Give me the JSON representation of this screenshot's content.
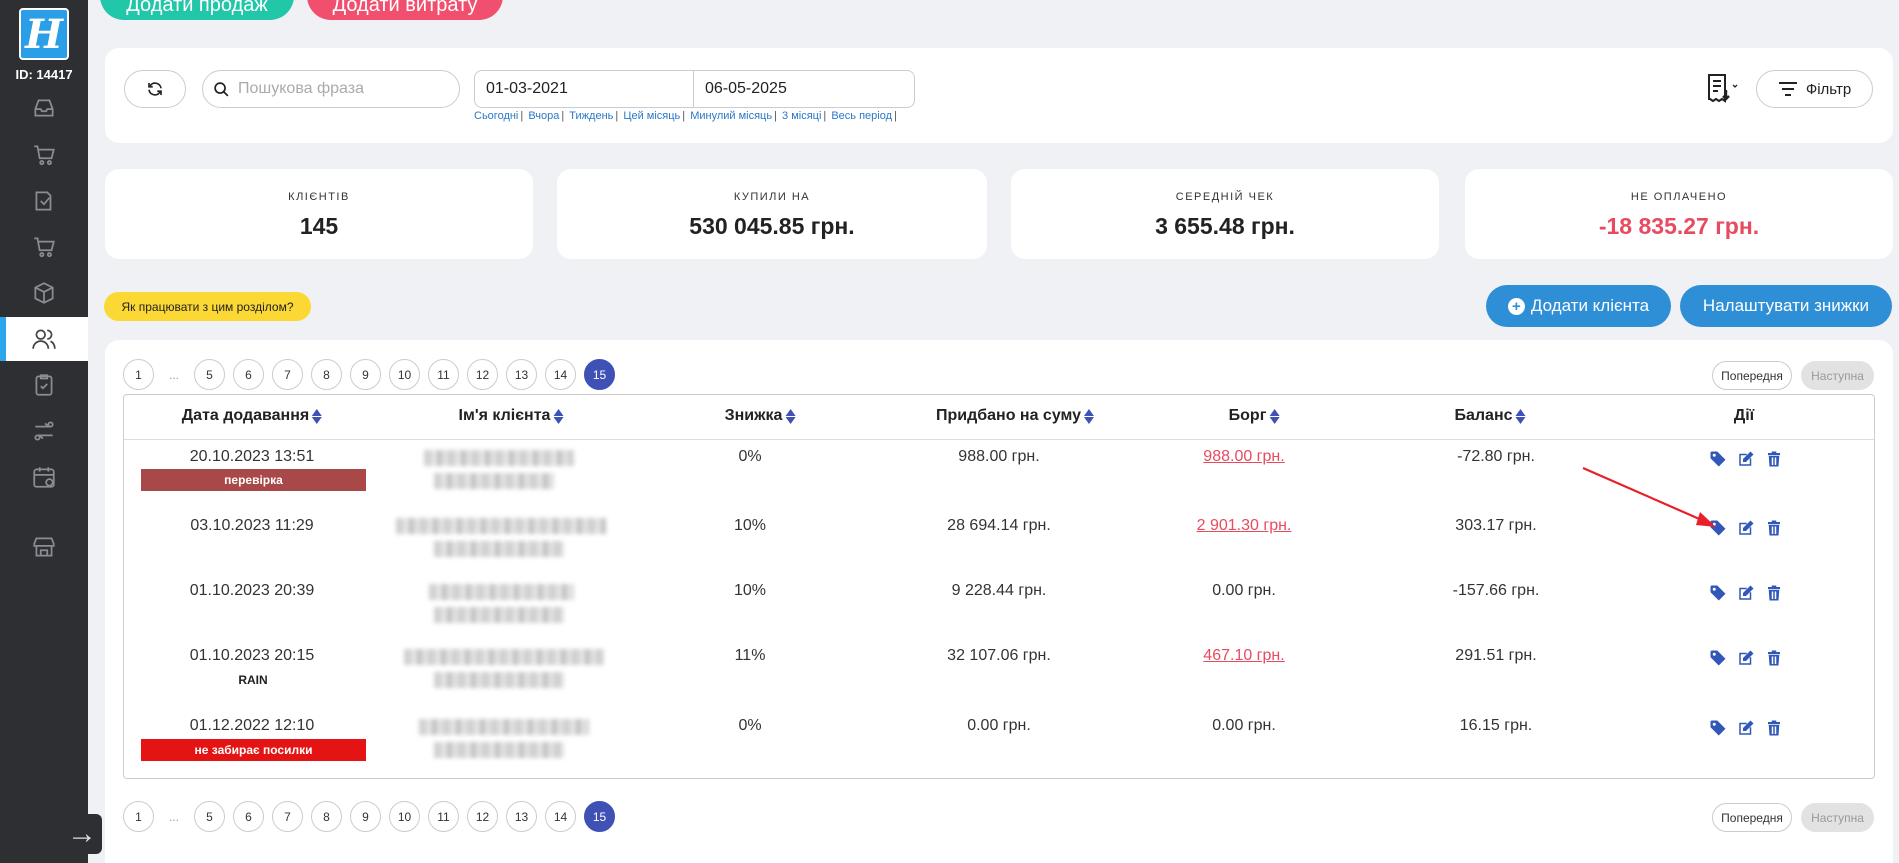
{
  "sidebar": {
    "logo_letter": "H",
    "user_id": "ID: 14417",
    "items": [
      {
        "name": "dashboard-icon"
      },
      {
        "name": "cart-icon"
      },
      {
        "name": "orders-icon"
      },
      {
        "name": "shopping-cart-icon"
      },
      {
        "name": "box-icon"
      },
      {
        "name": "users-icon",
        "active": true
      },
      {
        "name": "clipboard-icon"
      },
      {
        "name": "exchange-icon"
      },
      {
        "name": "calendar-icon"
      },
      {
        "name": "store-icon"
      }
    ],
    "collapse_icon": "arrow-right-icon"
  },
  "top_buttons": {
    "add_sale": "Додати продаж",
    "add_expense": "Додати витрату"
  },
  "filters": {
    "search_placeholder": "Пошукова фраза",
    "date_from": "01-03-2021",
    "date_to": "06-05-2025",
    "quick_links": [
      "Сьогодні",
      "Вчора",
      "Тиждень",
      "Цей місяць",
      "Минулий місяць",
      "3 місяці",
      "Весь період"
    ],
    "filter_label": "Фільтр"
  },
  "stats": [
    {
      "label": "КЛІЄНТІВ",
      "value": "145"
    },
    {
      "label": "КУПИЛИ НА",
      "value": "530 045.85 грн."
    },
    {
      "label": "СЕРЕДНІЙ ЧЕК",
      "value": "3 655.48 грн."
    },
    {
      "label": "НЕ ОПЛАЧЕНО",
      "value": "-18 835.27 грн.",
      "negative": true
    }
  ],
  "help_label": "Як працювати з цим розділом?",
  "add_client_label": "Додати клієнта",
  "discounts_label": "Налаштувати знижки",
  "pagination": {
    "pages": [
      "1",
      "...",
      "5",
      "6",
      "7",
      "8",
      "9",
      "10",
      "11",
      "12",
      "13",
      "14",
      "15"
    ],
    "current": "15",
    "prev_label": "Попередня",
    "next_label": "Наступна"
  },
  "table": {
    "headers": {
      "date": "Дата додавання",
      "name": "Ім'я клієнта",
      "discount": "Знижка",
      "purchased": "Придбано на суму",
      "debt": "Борг",
      "balance": "Баланс",
      "actions": "Дії"
    },
    "rows": [
      {
        "date": "20.10.2023 13:51",
        "tag": "перевірка",
        "tag_color": "#a84848",
        "discount": "0%",
        "purchased": "988.00 грн.",
        "debt": "988.00 грн.",
        "debt_link": true,
        "balance": "-72.80 грн."
      },
      {
        "date": "03.10.2023 11:29",
        "tag": "",
        "discount": "10%",
        "purchased": "28 694.14 грн.",
        "debt": "2 901.30 грн.",
        "debt_link": true,
        "balance": "303.17 грн."
      },
      {
        "date": "01.10.2023 20:39",
        "tag": "",
        "discount": "10%",
        "purchased": "9 228.44 грн.",
        "debt": "0.00 грн.",
        "debt_link": false,
        "balance": "-157.66 грн."
      },
      {
        "date": "01.10.2023 20:15",
        "tag_plain": "RAIN",
        "discount": "11%",
        "purchased": "32 107.06 грн.",
        "debt": "467.10 грн.",
        "debt_link": true,
        "balance": "291.51 грн."
      },
      {
        "date": "01.12.2022 12:10",
        "tag": "не забирає посилки",
        "tag_color": "#e41414",
        "discount": "0%",
        "purchased": "0.00 грн.",
        "debt": "0.00 грн.",
        "debt_link": false,
        "balance": "16.15 грн."
      }
    ],
    "row_action_icons": [
      "tag-icon",
      "edit-icon",
      "trash-icon"
    ]
  },
  "colors": {
    "accent": "#3f51b5",
    "primary_button": "#2e8ed6",
    "negative": "#e84a5f",
    "sidebar": "#2d2f33"
  }
}
